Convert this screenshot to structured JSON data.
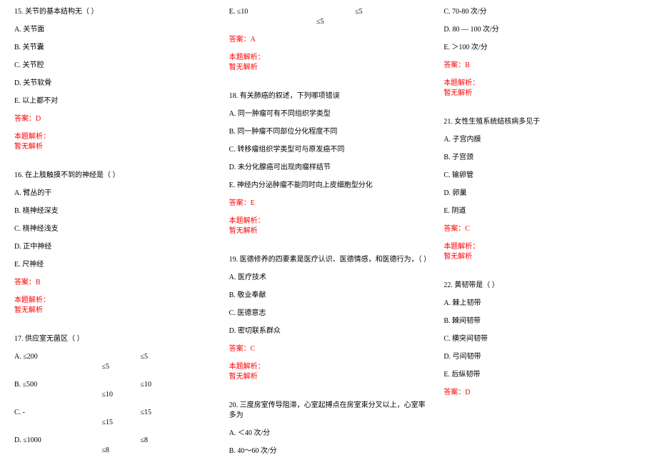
{
  "text_color": "#000000",
  "accent_color": "#ff0000",
  "background": "#ffffff",
  "font_family": "SimSun",
  "font_size_pt": 8,
  "questions": [
    {
      "num": "15",
      "stem": "15. 关节的基本结构无（ ）",
      "options": [
        "A. 关节面",
        "B. 关节囊",
        "C. 关节腔",
        "D. 关节软骨",
        "E. 以上都不对"
      ],
      "answer": "答案：D",
      "analysis_label": "本题解析：",
      "analysis_body": "暂无解析"
    },
    {
      "num": "16",
      "stem": "16. 在上肢触摸不到的神经是（ ）",
      "options": [
        "A. 臂丛的干",
        "B. 桡神经深支",
        "C. 桡神经浅支",
        "D. 正中神经",
        "E. 尺神经"
      ],
      "answer": "答案：B",
      "analysis_label": "本题解析：",
      "analysis_body": "暂无解析"
    },
    {
      "num": "17",
      "stem": "17. 供应室无菌区（  ）",
      "table": [
        [
          "A. ≤200",
          "≤5",
          "≤5"
        ],
        [
          "B. ≤500",
          "≤10",
          "≤10"
        ],
        [
          "C. -",
          "≤15",
          "≤15"
        ],
        [
          "D. ≤1000",
          "≤8",
          "≤8"
        ],
        [
          "E. ≤10",
          "≤5",
          "≤5"
        ]
      ],
      "answer": "答案：A",
      "analysis_label": "本题解析：",
      "analysis_body": "暂无解析"
    },
    {
      "num": "18",
      "stem": "18. 有关肺癌的叙述，下列哪项错误",
      "options": [
        "A. 同一肿瘤可有不同组织学类型",
        "B. 同一肿瘤不同部位分化程度不同",
        "C. 转移瘤组织学类型可与原发癌不同",
        "D. 未分化腺癌可出现肉瘤样结节",
        "E. 神经内分泌肿瘤不能同时向上皮细胞型分化"
      ],
      "answer": "答案：E",
      "analysis_label": "本题解析：",
      "analysis_body": "暂无解析"
    },
    {
      "num": "19",
      "stem": "19. 医德修养的四要素是医疗认识、医德情感，和医德行为，（ ）",
      "options": [
        "A. 医疗技术",
        "B. 敬业奉献",
        "C. 医德意志",
        "D. 密切联系群众"
      ],
      "answer": "答案：C",
      "analysis_label": "本题解析：",
      "analysis_body": "暂无解析"
    },
    {
      "num": "20",
      "stem": "20. 三度房室传导阻滞，心室起搏点在房室束分叉以上，心室率多为",
      "options": [
        "A. ＜40 次/分",
        "B. 40～60 次/分",
        "C. 70-80 次/分",
        "D. 80 — 100 次/分",
        "E. ＞100 次/分"
      ],
      "answer": "答案：B",
      "analysis_label": "本题解析：",
      "analysis_body": "暂无解析"
    },
    {
      "num": "21",
      "stem": "21. 女性生殖系统结核病多见于",
      "options": [
        "A. 子宫内膜",
        "B. 子宫颈",
        "C. 输卵管",
        "D. 卵巢",
        "E. 阴道"
      ],
      "answer": "答案：C",
      "analysis_label": "本题解析：",
      "analysis_body": "暂无解析"
    },
    {
      "num": "22",
      "stem": "22. 黄韧带是（ ）",
      "options": [
        "A. 棘上韧带",
        "B. 棘间韧带",
        "C. 横突间韧带",
        "D. 弓间韧带",
        "E. 后纵韧带"
      ],
      "answer": "答案：D"
    }
  ]
}
